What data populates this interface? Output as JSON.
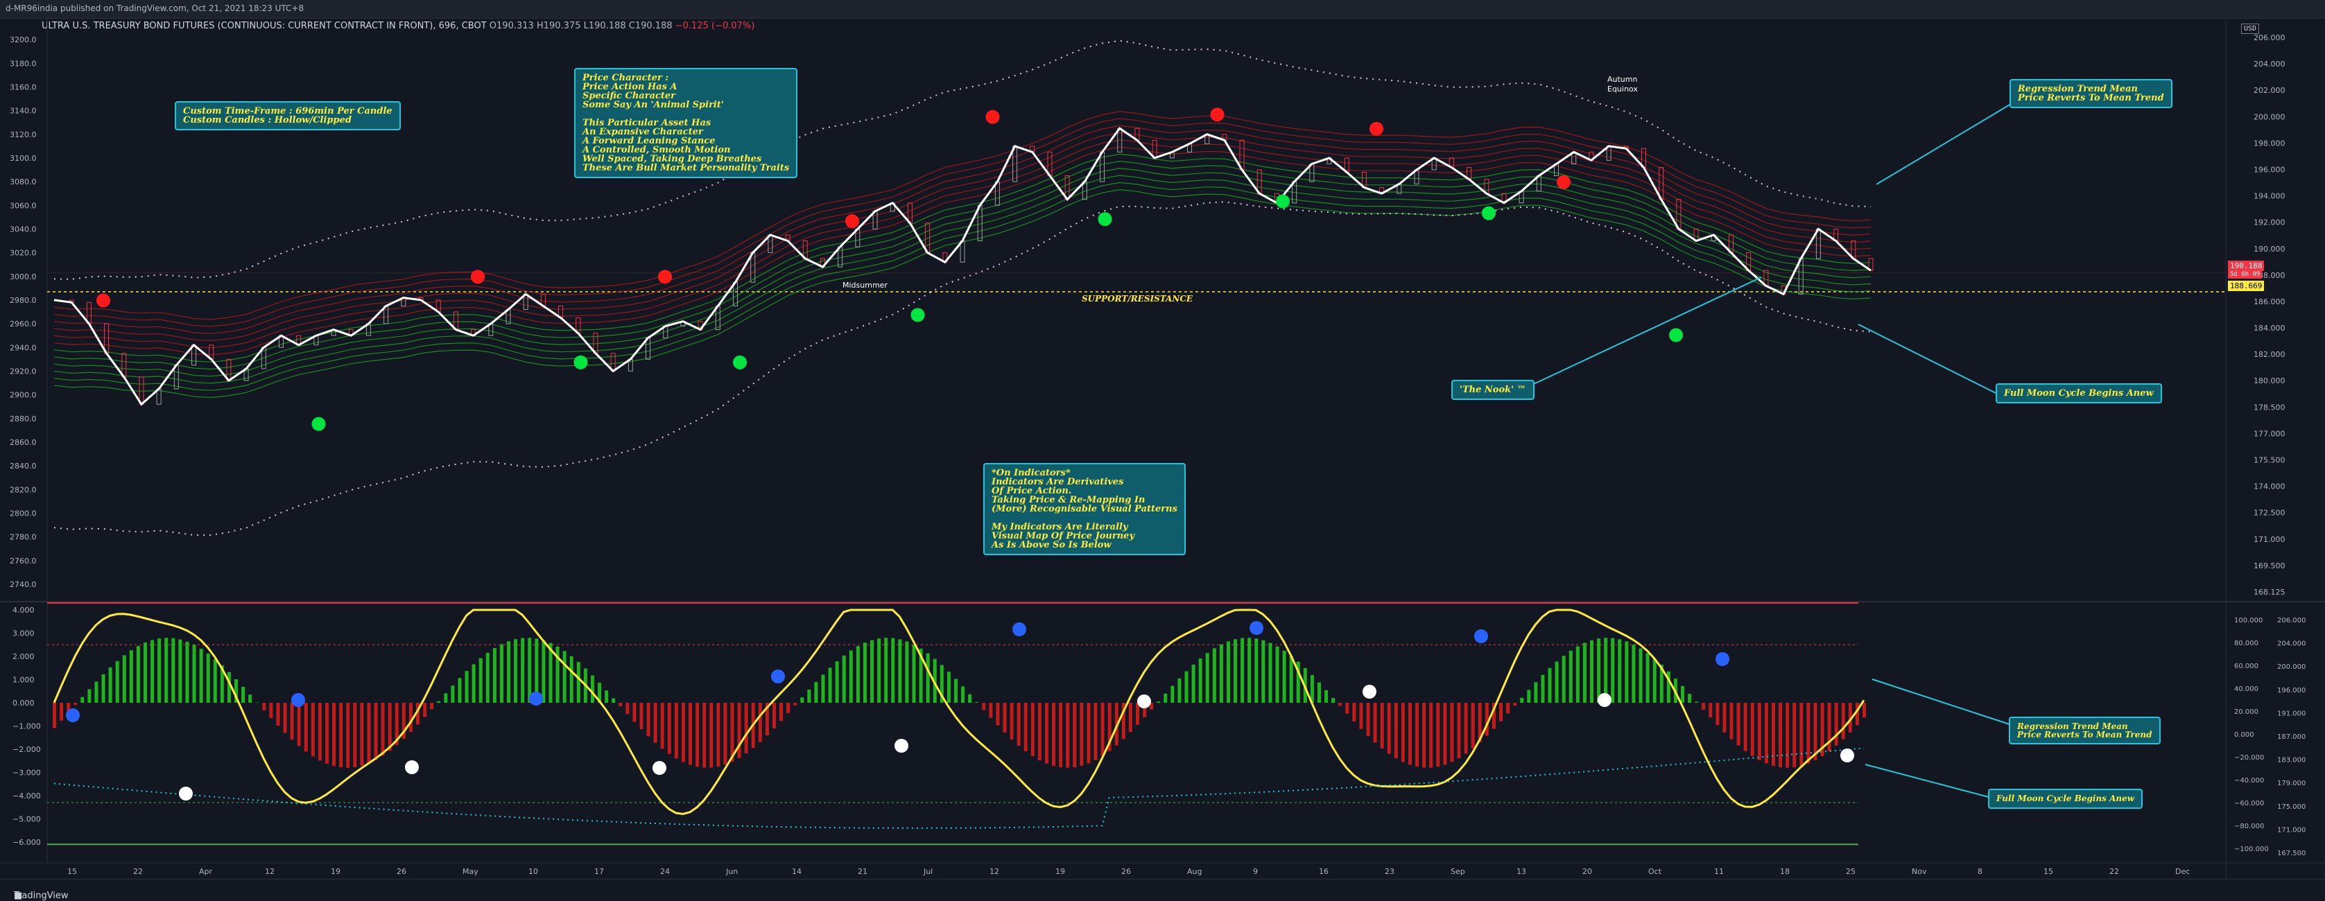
{
  "publisher": "d-MR96india published on TradingView.com, Oct 21, 2021 18:23 UTC+8",
  "symbol": {
    "name": "ULTRA U.S. TREASURY BOND FUTURES (CONTINUOUS: CURRENT CONTRACT IN FRONT), 696, CBOT",
    "o": "O190.313",
    "h": "H190.375",
    "l": "L190.188",
    "c": "C190.188",
    "chg": "−0.125 (−0.07%)"
  },
  "footer": {
    "brand": "TradingView"
  },
  "currency": "USD",
  "price_label": {
    "value": "190.188",
    "sub": "5d 6h 09",
    "sr": "188.669"
  },
  "annotations": {
    "timeframe": "Custom Time-Frame : 696min Per Candle\nCustom Candles : Hollow/Clipped",
    "character": "Price Character :\nPrice Action Has A\nSpecific Character\nSome Say An 'Animal Spirit'\n\nThis Particular Asset Has\nAn Expansive Character\nA Forward Leaning Stance\nA Controlled, Smooth Motion\nWell Spaced, Taking Deep Breathes\nThese Are Bull Market Personality Traits",
    "indicators": "*On Indicators*\nIndicators Are Derivatives\nOf Price Action.\nTaking Price & Re-Mapping In\n(More) Recognisable Visual Patterns\n\nMy Indicators Are Literally\nVisual Map Of Price Journey\nAs Is Above So Is Below",
    "regression_top": "Regression Trend Mean\nPrice Reverts To Mean Trend",
    "fullmoon_top": "Full Moon Cycle Begins Anew",
    "nook": "'The Nook' ™",
    "regression_bottom": "Regression Trend Mean\nPrice Reverts To Mean Trend",
    "fullmoon_bottom": "Full Moon Cycle Begins Anew",
    "support": "SUPPORT/RESISTANCE",
    "midsummer": "Midsummer",
    "autumn": "Autumn\nEquinox"
  },
  "chart_data": [
    {
      "type": "line",
      "panel": "price",
      "left_axis_ticks": [
        "3200.0",
        "3180.0",
        "3160.0",
        "3140.0",
        "3120.0",
        "3100.0",
        "3080.0",
        "3060.0",
        "3040.0",
        "3020.0",
        "3000.0",
        "2980.0",
        "2960.0",
        "2940.0",
        "2920.0",
        "2900.0",
        "2880.0",
        "2860.0",
        "2840.0",
        "2820.0",
        "2800.0",
        "2780.0",
        "2760.0",
        "2740.0"
      ],
      "right_axis_ticks": [
        "206.000",
        "204.000",
        "202.000",
        "200.000",
        "198.000",
        "196.000",
        "194.000",
        "192.000",
        "190.000",
        "188.000",
        "186.000",
        "184.000",
        "182.000",
        "180.000",
        "178.500",
        "177.000",
        "175.500",
        "174.000",
        "172.500",
        "171.000",
        "169.500",
        "168.125"
      ],
      "x_ticks": [
        "15",
        "22",
        "Apr",
        "12",
        "19",
        "26",
        "May",
        "10",
        "17",
        "24",
        "Jun",
        "14",
        "21",
        "Jul",
        "12",
        "19",
        "26",
        "Aug",
        "9",
        "16",
        "23",
        "Sep",
        "13",
        "20",
        "Oct",
        "11",
        "18",
        "25",
        "Nov",
        "8",
        "15",
        "22",
        "Dec"
      ],
      "ylim": [
        2730,
        3210
      ],
      "price_line": [
        2980,
        2978,
        2960,
        2935,
        2915,
        2892,
        2905,
        2925,
        2942,
        2930,
        2912,
        2922,
        2940,
        2950,
        2942,
        2950,
        2955,
        2950,
        2960,
        2975,
        2982,
        2980,
        2970,
        2955,
        2950,
        2960,
        2972,
        2985,
        2975,
        2965,
        2952,
        2935,
        2920,
        2930,
        2948,
        2958,
        2962,
        2955,
        2975,
        2995,
        3020,
        3035,
        3030,
        3015,
        3008,
        3025,
        3040,
        3055,
        3062,
        3045,
        3020,
        3012,
        3030,
        3060,
        3080,
        3110,
        3105,
        3085,
        3065,
        3080,
        3105,
        3125,
        3115,
        3100,
        3105,
        3112,
        3120,
        3115,
        3090,
        3070,
        3062,
        3080,
        3095,
        3100,
        3088,
        3075,
        3070,
        3078,
        3090,
        3100,
        3092,
        3082,
        3070,
        3062,
        3072,
        3085,
        3095,
        3105,
        3098,
        3110,
        3108,
        3092,
        3065,
        3040,
        3030,
        3035,
        3020,
        3005,
        2992,
        2985,
        3015,
        3040,
        3030,
        3015,
        3005
      ],
      "lows_dots": [
        {
          "x": 0.145,
          "y": 2890,
          "c": "green"
        },
        {
          "x": 0.285,
          "y": 2942,
          "c": "green"
        },
        {
          "x": 0.37,
          "y": 2942,
          "c": "green"
        },
        {
          "x": 0.465,
          "y": 2982,
          "c": "green"
        },
        {
          "x": 0.565,
          "y": 3063,
          "c": "green"
        },
        {
          "x": 0.66,
          "y": 3078,
          "c": "green"
        },
        {
          "x": 0.77,
          "y": 3068,
          "c": "green"
        },
        {
          "x": 0.87,
          "y": 2965,
          "c": "green"
        }
      ],
      "highs_dots": [
        {
          "x": 0.03,
          "y": 2965,
          "c": "red"
        },
        {
          "x": 0.23,
          "y": 2985,
          "c": "red"
        },
        {
          "x": 0.33,
          "y": 2985,
          "c": "red"
        },
        {
          "x": 0.43,
          "y": 3032,
          "c": "red"
        },
        {
          "x": 0.505,
          "y": 3120,
          "c": "red"
        },
        {
          "x": 0.625,
          "y": 3122,
          "c": "red"
        },
        {
          "x": 0.71,
          "y": 3110,
          "c": "red"
        },
        {
          "x": 0.81,
          "y": 3065,
          "c": "red"
        }
      ]
    },
    {
      "type": "bar",
      "panel": "oscillator",
      "left_axis_ticks": [
        "4.000",
        "3.000",
        "2.000",
        "1.000",
        "0.000",
        "−1.000",
        "−2.000",
        "−3.000",
        "−4.000",
        "−5.000",
        "−6.000"
      ],
      "right_axis_ticks": [
        "100.000",
        "80.000",
        "60.000",
        "40.000",
        "20.000",
        "0.000",
        "−20.000",
        "−40.000",
        "−60.000",
        "−80.000",
        "−100.000"
      ],
      "right_axis_ticks2": [
        "206.000",
        "204.000",
        "200.000",
        "196.000",
        "191.000",
        "187.000",
        "183.000",
        "179.000",
        "175.000",
        "171.000",
        "167.500"
      ],
      "ylim": [
        -6.3,
        4.3
      ]
    }
  ]
}
